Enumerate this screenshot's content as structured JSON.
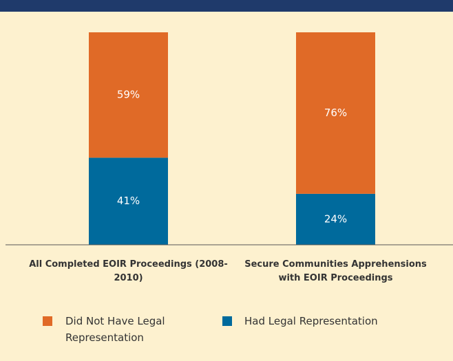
{
  "chart_data": {
    "type": "stacked-bar",
    "categories": [
      "All Completed EOIR Proceedings (2008-2010)",
      "Secure Communities Apprehensions with EOIR Proceedings"
    ],
    "series": [
      {
        "name": "Did Not Have Legal Representation",
        "color": "#e06a27",
        "values": [
          59,
          76
        ],
        "value_labels": [
          "59%",
          "76%"
        ]
      },
      {
        "name": "Had Legal Representation",
        "color": "#006a9c",
        "values": [
          41,
          24
        ],
        "value_labels": [
          "41%",
          "24%"
        ]
      }
    ],
    "ylim": [
      0,
      100
    ]
  }
}
